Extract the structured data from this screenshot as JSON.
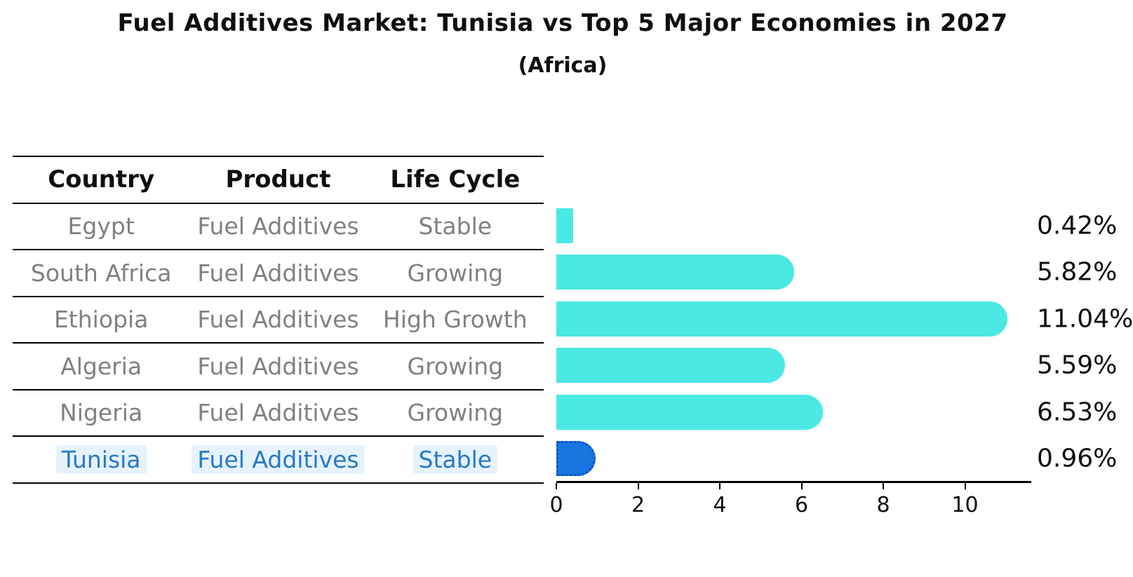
{
  "page": {
    "title": "Fuel Additives Market: Tunisia vs Top 5 Major Economies in 2027",
    "subtitle": "(Africa)"
  },
  "table": {
    "headers": {
      "country": "Country",
      "product": "Product",
      "life_cycle": "Life Cycle"
    },
    "rows": [
      {
        "country": "Egypt",
        "product": "Fuel Additives",
        "life_cycle": "Stable"
      },
      {
        "country": "South Africa",
        "product": "Fuel Additives",
        "life_cycle": "Growing"
      },
      {
        "country": "Ethiopia",
        "product": "Fuel Additives",
        "life_cycle": "High Growth"
      },
      {
        "country": "Algeria",
        "product": "Fuel Additives",
        "life_cycle": "Growing"
      },
      {
        "country": "Nigeria",
        "product": "Fuel Additives",
        "life_cycle": "Growing"
      },
      {
        "country": "Tunisia",
        "product": "Fuel Additives",
        "life_cycle": "Stable"
      }
    ],
    "highlighted_country": "Tunisia"
  },
  "chart_data": {
    "type": "bar",
    "orientation": "horizontal",
    "title": "Fuel Additives Market: Tunisia vs Top 5 Major Economies in 2027",
    "subtitle": "(Africa)",
    "categories": [
      "Egypt",
      "South Africa",
      "Ethiopia",
      "Algeria",
      "Nigeria",
      "Tunisia"
    ],
    "values": [
      0.42,
      5.82,
      11.04,
      5.59,
      6.53,
      0.96
    ],
    "value_labels": [
      "0.42%",
      "5.82%",
      "11.04%",
      "5.59%",
      "6.53%",
      "0.96%"
    ],
    "xticks": [
      "0",
      "2",
      "4",
      "6",
      "8",
      "10"
    ],
    "xlim": [
      0,
      11.6
    ],
    "grid": false,
    "legend": "none",
    "bar_color": "#4be8e4",
    "highlight_bar_color": "#1a75e0",
    "highlight_border_color": "#0e52c7",
    "highlight_text_color": "#2878c8",
    "row_text_color": "#808080",
    "highlight_index": 5
  }
}
